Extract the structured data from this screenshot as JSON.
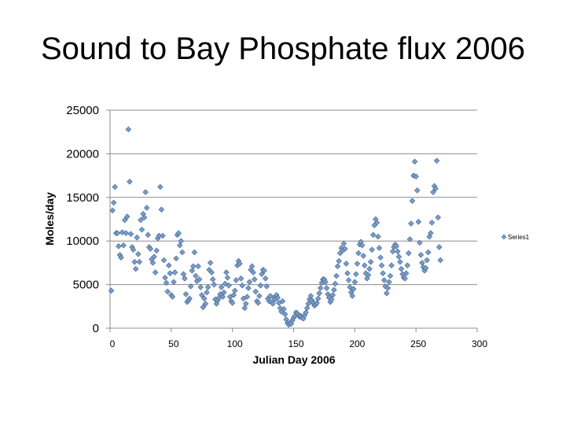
{
  "slide": {
    "title": "Sound to Bay Phosphate flux 2006"
  },
  "colors": {
    "marker_fill": "#7b9cc4",
    "marker_stroke": "#4a6f9e",
    "axis": "#8c8c8c"
  },
  "chart_data": {
    "type": "scatter",
    "title": "Sound to Bay Phosphate flux 2006",
    "xlabel": "Julian Day 2006",
    "ylabel": "Moles/day",
    "xlim": [
      0,
      300
    ],
    "ylim": [
      0,
      25000
    ],
    "x_ticks": [
      "0",
      "50",
      "100",
      "150",
      "200",
      "250",
      "300"
    ],
    "y_ticks": [
      "0",
      "5000",
      "10000",
      "15000",
      "20000",
      "25000"
    ],
    "grid": "horizontal",
    "legend": {
      "position": "right",
      "entries": [
        "Series1"
      ]
    },
    "series": [
      {
        "name": "Series1",
        "marker": "diamond",
        "points": [
          [
            1,
            4300
          ],
          [
            2,
            13500
          ],
          [
            3,
            14400
          ],
          [
            4,
            16200
          ],
          [
            5,
            10900
          ],
          [
            6,
            10900
          ],
          [
            7,
            9400
          ],
          [
            8,
            8400
          ],
          [
            9,
            8100
          ],
          [
            10,
            11000
          ],
          [
            11,
            9500
          ],
          [
            12,
            12400
          ],
          [
            13,
            10900
          ],
          [
            14,
            12800
          ],
          [
            15,
            22800
          ],
          [
            16,
            16800
          ],
          [
            17,
            10800
          ],
          [
            18,
            9300
          ],
          [
            19,
            9000
          ],
          [
            20,
            7600
          ],
          [
            21,
            6800
          ],
          [
            22,
            10400
          ],
          [
            23,
            8500
          ],
          [
            24,
            7600
          ],
          [
            25,
            12400
          ],
          [
            26,
            11300
          ],
          [
            27,
            13100
          ],
          [
            28,
            12700
          ],
          [
            29,
            15600
          ],
          [
            30,
            13800
          ],
          [
            31,
            10700
          ],
          [
            32,
            9300
          ],
          [
            33,
            9100
          ],
          [
            34,
            7900
          ],
          [
            35,
            7500
          ],
          [
            36,
            8200
          ],
          [
            37,
            6400
          ],
          [
            38,
            8900
          ],
          [
            39,
            10300
          ],
          [
            40,
            10600
          ],
          [
            41,
            16200
          ],
          [
            42,
            13600
          ],
          [
            43,
            10600
          ],
          [
            44,
            7800
          ],
          [
            45,
            5800
          ],
          [
            46,
            5200
          ],
          [
            47,
            4200
          ],
          [
            48,
            7200
          ],
          [
            49,
            6300
          ],
          [
            50,
            3800
          ],
          [
            51,
            3600
          ],
          [
            52,
            5300
          ],
          [
            53,
            6400
          ],
          [
            54,
            8000
          ],
          [
            55,
            10700
          ],
          [
            56,
            10900
          ],
          [
            57,
            9500
          ],
          [
            58,
            10000
          ],
          [
            59,
            8700
          ],
          [
            60,
            6200
          ],
          [
            61,
            5700
          ],
          [
            62,
            3900
          ],
          [
            63,
            3000
          ],
          [
            64,
            3200
          ],
          [
            65,
            3400
          ],
          [
            66,
            4800
          ],
          [
            67,
            6600
          ],
          [
            68,
            7100
          ],
          [
            69,
            8700
          ],
          [
            70,
            6000
          ],
          [
            71,
            5400
          ],
          [
            72,
            7100
          ],
          [
            73,
            5600
          ],
          [
            74,
            4700
          ],
          [
            75,
            3800
          ],
          [
            76,
            2400
          ],
          [
            77,
            3400
          ],
          [
            78,
            2800
          ],
          [
            79,
            4100
          ],
          [
            80,
            4700
          ],
          [
            81,
            6700
          ],
          [
            82,
            7500
          ],
          [
            83,
            6400
          ],
          [
            84,
            5600
          ],
          [
            85,
            5000
          ],
          [
            86,
            3300
          ],
          [
            87,
            2800
          ],
          [
            88,
            3200
          ],
          [
            89,
            3500
          ],
          [
            90,
            3900
          ],
          [
            91,
            4700
          ],
          [
            92,
            3600
          ],
          [
            93,
            4100
          ],
          [
            94,
            5100
          ],
          [
            95,
            6400
          ],
          [
            96,
            5800
          ],
          [
            97,
            4900
          ],
          [
            98,
            3600
          ],
          [
            99,
            3100
          ],
          [
            100,
            2900
          ],
          [
            101,
            3800
          ],
          [
            102,
            4300
          ],
          [
            103,
            5500
          ],
          [
            104,
            7200
          ],
          [
            105,
            7700
          ],
          [
            106,
            7400
          ],
          [
            107,
            5700
          ],
          [
            108,
            4900
          ],
          [
            109,
            3400
          ],
          [
            110,
            2300
          ],
          [
            111,
            2800
          ],
          [
            112,
            3600
          ],
          [
            113,
            4600
          ],
          [
            114,
            5300
          ],
          [
            115,
            6700
          ],
          [
            116,
            7100
          ],
          [
            117,
            6400
          ],
          [
            118,
            5600
          ],
          [
            119,
            4200
          ],
          [
            120,
            3100
          ],
          [
            121,
            2900
          ],
          [
            122,
            3700
          ],
          [
            123,
            4900
          ],
          [
            124,
            6200
          ],
          [
            125,
            6700
          ],
          [
            126,
            6600
          ],
          [
            127,
            5700
          ],
          [
            128,
            4800
          ],
          [
            129,
            3400
          ],
          [
            130,
            3100
          ],
          [
            131,
            3700
          ],
          [
            132,
            3000
          ],
          [
            133,
            2800
          ],
          [
            134,
            3500
          ],
          [
            135,
            3300
          ],
          [
            136,
            3800
          ],
          [
            137,
            3500
          ],
          [
            138,
            2900
          ],
          [
            139,
            2300
          ],
          [
            140,
            1900
          ],
          [
            141,
            3100
          ],
          [
            142,
            2200
          ],
          [
            143,
            1600
          ],
          [
            144,
            1000
          ],
          [
            145,
            600
          ],
          [
            146,
            400
          ],
          [
            147,
            600
          ],
          [
            148,
            500
          ],
          [
            149,
            900
          ],
          [
            150,
            1200
          ],
          [
            151,
            1400
          ],
          [
            152,
            1800
          ],
          [
            153,
            1700
          ],
          [
            154,
            1500
          ],
          [
            155,
            1300
          ],
          [
            156,
            1400
          ],
          [
            157,
            1200
          ],
          [
            158,
            1100
          ],
          [
            159,
            1500
          ],
          [
            160,
            1800
          ],
          [
            161,
            2300
          ],
          [
            162,
            2800
          ],
          [
            163,
            3300
          ],
          [
            164,
            3700
          ],
          [
            165,
            3200
          ],
          [
            166,
            2900
          ],
          [
            167,
            2600
          ],
          [
            168,
            2700
          ],
          [
            169,
            2900
          ],
          [
            170,
            3400
          ],
          [
            171,
            4000
          ],
          [
            172,
            4600
          ],
          [
            173,
            5200
          ],
          [
            174,
            5600
          ],
          [
            175,
            5600
          ],
          [
            176,
            5300
          ],
          [
            177,
            4600
          ],
          [
            178,
            3900
          ],
          [
            179,
            3500
          ],
          [
            180,
            3000
          ],
          [
            181,
            3300
          ],
          [
            182,
            3800
          ],
          [
            183,
            4400
          ],
          [
            184,
            5100
          ],
          [
            185,
            6000
          ],
          [
            186,
            7100
          ],
          [
            187,
            7700
          ],
          [
            188,
            8600
          ],
          [
            189,
            9200
          ],
          [
            190,
            8900
          ],
          [
            191,
            9700
          ],
          [
            192,
            9100
          ],
          [
            193,
            7400
          ],
          [
            194,
            6300
          ],
          [
            195,
            5500
          ],
          [
            196,
            4700
          ],
          [
            197,
            4100
          ],
          [
            198,
            3700
          ],
          [
            199,
            4500
          ],
          [
            200,
            5300
          ],
          [
            201,
            6200
          ],
          [
            202,
            7400
          ],
          [
            203,
            8600
          ],
          [
            204,
            9600
          ],
          [
            205,
            9900
          ],
          [
            206,
            9500
          ],
          [
            207,
            8300
          ],
          [
            208,
            7200
          ],
          [
            209,
            6300
          ],
          [
            210,
            5700
          ],
          [
            211,
            6100
          ],
          [
            212,
            6800
          ],
          [
            213,
            7600
          ],
          [
            214,
            9000
          ],
          [
            215,
            10700
          ],
          [
            216,
            11800
          ],
          [
            217,
            12500
          ],
          [
            218,
            12100
          ],
          [
            219,
            10500
          ],
          [
            220,
            9200
          ],
          [
            221,
            8100
          ],
          [
            222,
            7200
          ],
          [
            223,
            6300
          ],
          [
            224,
            5500
          ],
          [
            225,
            4800
          ],
          [
            226,
            4000
          ],
          [
            227,
            4600
          ],
          [
            228,
            5300
          ],
          [
            229,
            6000
          ],
          [
            230,
            7200
          ],
          [
            231,
            8800
          ],
          [
            232,
            9300
          ],
          [
            233,
            9600
          ],
          [
            234,
            9400
          ],
          [
            235,
            8800
          ],
          [
            236,
            8200
          ],
          [
            237,
            7600
          ],
          [
            238,
            6800
          ],
          [
            239,
            6200
          ],
          [
            240,
            5800
          ],
          [
            241,
            5700
          ],
          [
            242,
            6300
          ],
          [
            243,
            7200
          ],
          [
            244,
            8600
          ],
          [
            245,
            10200
          ],
          [
            246,
            12000
          ],
          [
            247,
            14600
          ],
          [
            248,
            17500
          ],
          [
            249,
            19100
          ],
          [
            250,
            17400
          ],
          [
            251,
            15800
          ],
          [
            252,
            12200
          ],
          [
            253,
            9800
          ],
          [
            254,
            8400
          ],
          [
            255,
            7500
          ],
          [
            256,
            7000
          ],
          [
            257,
            6600
          ],
          [
            258,
            6900
          ],
          [
            259,
            7800
          ],
          [
            260,
            8700
          ],
          [
            261,
            10500
          ],
          [
            262,
            10900
          ],
          [
            263,
            12100
          ],
          [
            264,
            15600
          ],
          [
            265,
            16300
          ],
          [
            266,
            16000
          ],
          [
            267,
            19200
          ],
          [
            268,
            12700
          ],
          [
            269,
            9300
          ],
          [
            270,
            7800
          ]
        ]
      }
    ]
  }
}
